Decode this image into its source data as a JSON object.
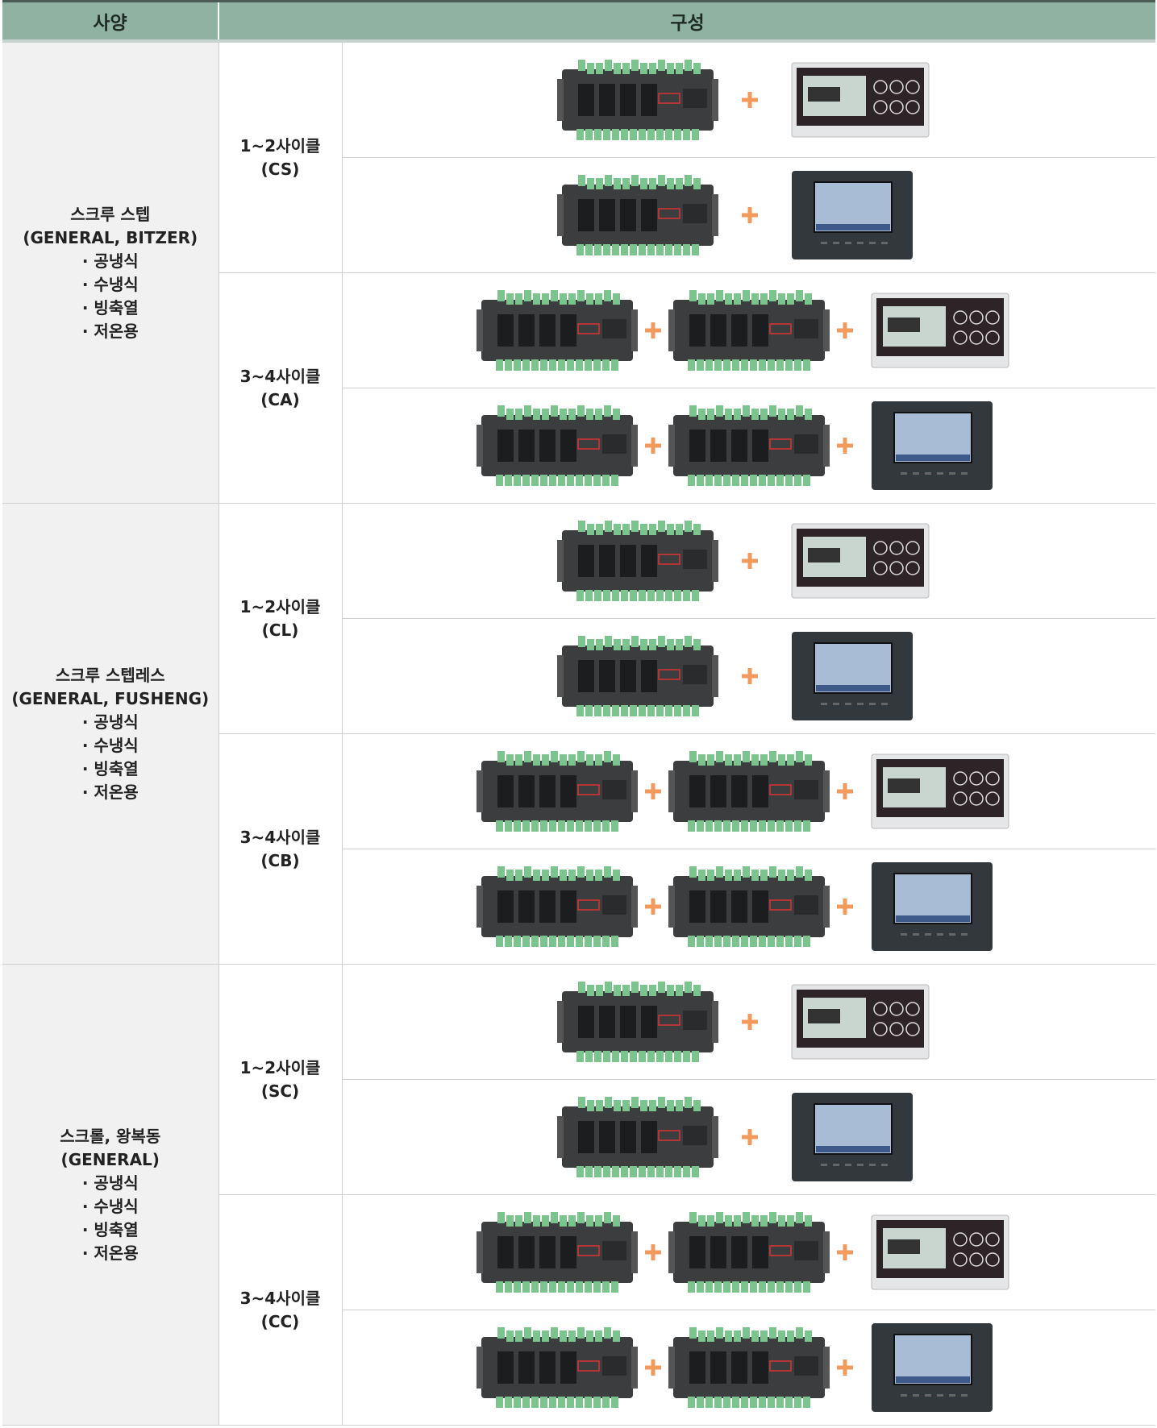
{
  "header": {
    "spec": "사양",
    "config": "구성"
  },
  "rows": [
    {
      "spec": [
        "스크루 스텝",
        "(GENERAL, BITZER)",
        "· 공냉식",
        "· 수냉식",
        "· 빙축열",
        "· 저온용"
      ],
      "cycles": [
        {
          "label": "1~2사이클",
          "code": "(CS)"
        },
        {
          "label": "3~4사이클",
          "code": "(CA)"
        }
      ]
    },
    {
      "spec": [
        "스크루 스텝레스",
        "(GENERAL, FUSHENG)",
        "· 공냉식",
        "· 수냉식",
        "· 빙축열",
        "· 저온용"
      ],
      "cycles": [
        {
          "label": "1~2사이클",
          "code": "(CL)"
        },
        {
          "label": "3~4사이클",
          "code": "(CB)"
        }
      ]
    },
    {
      "spec": [
        "스크롤, 왕복동",
        "(GENERAL)",
        "· 공냉식",
        "· 수냉식",
        "· 빙축열",
        "· 저온용"
      ],
      "cycles": [
        {
          "label": "1~2사이클",
          "code": "(SC)"
        },
        {
          "label": "3~4사이클",
          "code": "(CC)"
        }
      ]
    }
  ]
}
